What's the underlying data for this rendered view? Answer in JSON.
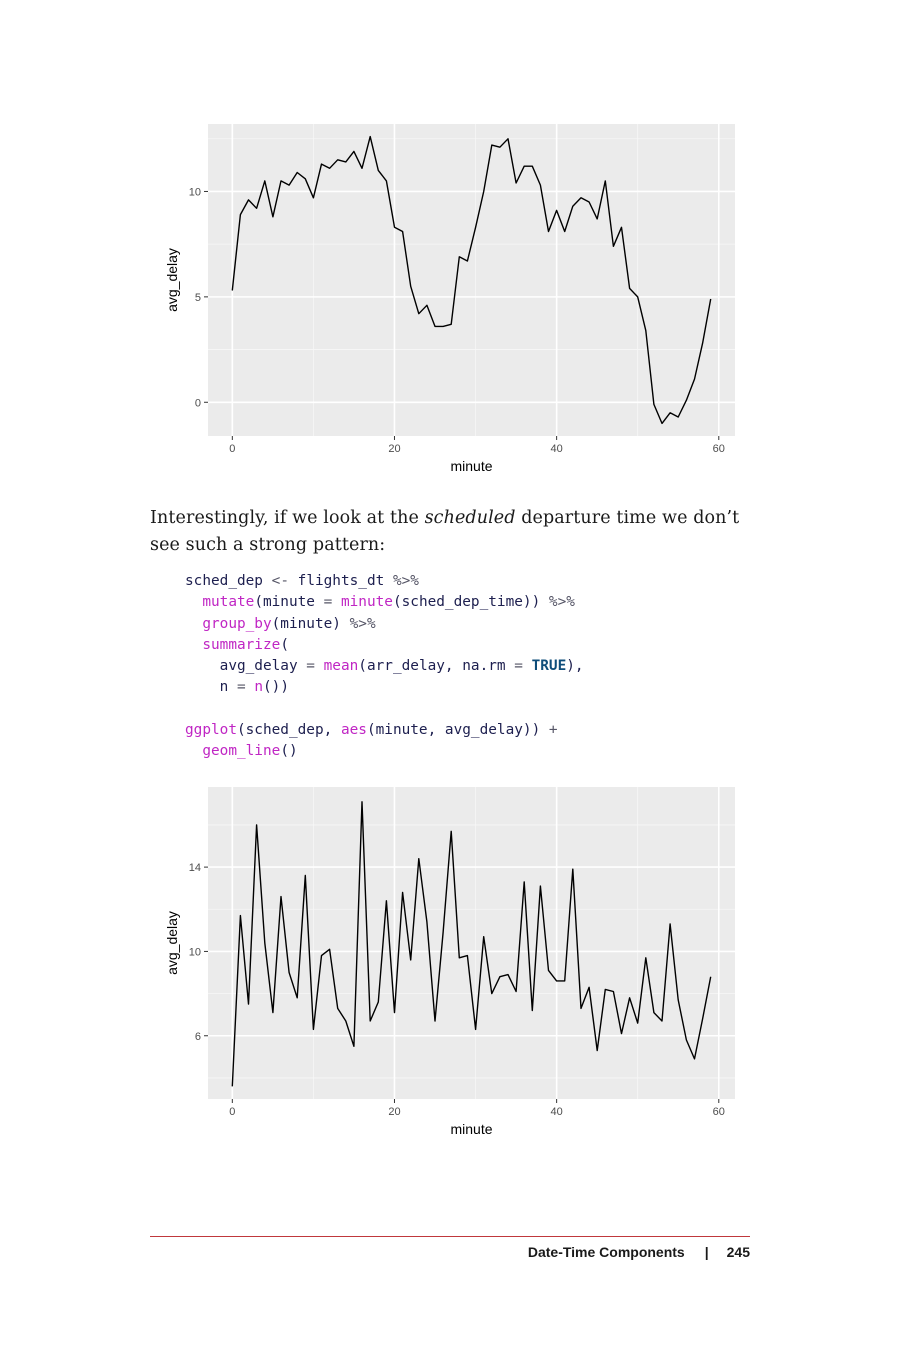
{
  "charts": [
    {
      "type": "line",
      "xlabel": "minute",
      "ylabel": "avg_delay",
      "xlim": [
        -3,
        62
      ],
      "ylim": [
        -1.6,
        13.2
      ],
      "xticks": [
        0,
        20,
        40,
        60
      ],
      "yticks": [
        0,
        5,
        10
      ],
      "grid": true,
      "background": "#ebebeb",
      "line_color": "#000000"
    },
    {
      "type": "line",
      "xlabel": "minute",
      "ylabel": "avg_delay",
      "xlim": [
        -3,
        62
      ],
      "ylim": [
        3.0,
        17.8
      ],
      "xticks": [
        0,
        20,
        40,
        60
      ],
      "yticks": [
        6,
        10,
        14
      ],
      "grid": true,
      "background": "#ebebeb",
      "line_color": "#000000"
    }
  ],
  "chart_data": [
    {
      "type": "line",
      "xlabel": "minute",
      "ylabel": "avg_delay",
      "x": [
        0,
        1,
        2,
        3,
        4,
        5,
        6,
        7,
        8,
        9,
        10,
        11,
        12,
        13,
        14,
        15,
        16,
        17,
        18,
        19,
        20,
        21,
        22,
        23,
        24,
        25,
        26,
        27,
        28,
        29,
        30,
        31,
        32,
        33,
        34,
        35,
        36,
        37,
        38,
        39,
        40,
        41,
        42,
        43,
        44,
        45,
        46,
        47,
        48,
        49,
        50,
        51,
        52,
        53,
        54,
        55,
        56,
        57,
        58,
        59
      ],
      "y": [
        5.3,
        8.9,
        9.6,
        9.2,
        10.5,
        8.8,
        10.5,
        10.3,
        10.9,
        10.6,
        9.7,
        11.3,
        11.1,
        11.5,
        11.4,
        11.9,
        11.1,
        12.6,
        11.0,
        10.5,
        8.3,
        8.1,
        5.5,
        4.2,
        4.6,
        3.6,
        3.6,
        3.7,
        6.9,
        6.7,
        8.3,
        10.0,
        12.2,
        12.1,
        12.5,
        10.4,
        11.2,
        11.2,
        10.3,
        8.1,
        9.1,
        8.1,
        9.3,
        9.7,
        9.5,
        8.7,
        10.5,
        7.4,
        8.3,
        5.4,
        5.0,
        3.4,
        -0.1,
        -1.0,
        -0.5,
        -0.7,
        0.1,
        1.1,
        2.8,
        4.9
      ],
      "xlim": [
        -3,
        62
      ],
      "ylim": [
        -1.6,
        13.2
      ]
    },
    {
      "type": "line",
      "xlabel": "minute",
      "ylabel": "avg_delay",
      "x": [
        0,
        1,
        2,
        3,
        4,
        5,
        6,
        7,
        8,
        9,
        10,
        11,
        12,
        13,
        14,
        15,
        16,
        17,
        18,
        19,
        20,
        21,
        22,
        23,
        24,
        25,
        26,
        27,
        28,
        29,
        30,
        31,
        32,
        33,
        34,
        35,
        36,
        37,
        38,
        39,
        40,
        41,
        42,
        43,
        44,
        45,
        46,
        47,
        48,
        49,
        50,
        51,
        52,
        53,
        54,
        55,
        56,
        57,
        58,
        59
      ],
      "y": [
        3.6,
        11.7,
        7.5,
        16.0,
        10.4,
        7.1,
        12.6,
        9.0,
        7.8,
        13.6,
        6.3,
        9.8,
        10.1,
        7.3,
        6.7,
        5.5,
        17.1,
        6.7,
        7.6,
        12.4,
        7.1,
        12.8,
        9.6,
        14.4,
        11.4,
        6.7,
        10.9,
        15.7,
        9.7,
        9.8,
        6.3,
        10.7,
        8.0,
        8.8,
        8.9,
        8.1,
        13.3,
        7.2,
        13.1,
        9.1,
        8.6,
        8.6,
        13.9,
        7.3,
        8.3,
        5.3,
        8.2,
        8.1,
        6.1,
        7.8,
        6.6,
        9.7,
        7.1,
        6.7,
        11.3,
        7.7,
        5.8,
        4.9,
        6.8,
        8.8
      ],
      "xlim": [
        -3,
        62
      ],
      "ylim": [
        3.0,
        17.8
      ]
    }
  ],
  "text": {
    "para_a": "Interestingly, if we look at the ",
    "para_em": "scheduled",
    "para_b": " departure time we don’t see such a strong pattern:"
  },
  "code": {
    "l1_var": "sched_dep",
    "l1_assign": "<-",
    "l1_df": "flights_dt",
    "pipe": "%>%",
    "l2_fn": "mutate",
    "l2_a": "(minute ",
    "eq": "=",
    "l2_fn2": "minute",
    "l2_b": "(sched_dep_time)) ",
    "l3_fn": "group_by",
    "l3_a": "(minute) ",
    "l4_fn": "summarize",
    "l4_a": "(",
    "l5_a": "avg_delay ",
    "l5_fn": "mean",
    "l5_b": "(arr_delay, na.rm ",
    "l5_kw": "TRUE",
    "l5_c": "),",
    "l6_a": "n ",
    "l6_fn": "n",
    "l6_b": "())",
    "l8_fn": "ggplot",
    "l8_a": "(sched_dep, ",
    "l8_fn2": "aes",
    "l8_b": "(minute, avg_delay)) ",
    "plus": "+",
    "l9_fn": "geom_line",
    "l9_a": "()"
  },
  "footer": {
    "section": "Date-Time Components",
    "separator": "|",
    "page": "245"
  },
  "colors": {
    "rule": "#c0383c",
    "code_text": "#1d1f4f",
    "code_function": "#c026c4",
    "code_keyword": "#0e4d7a"
  }
}
